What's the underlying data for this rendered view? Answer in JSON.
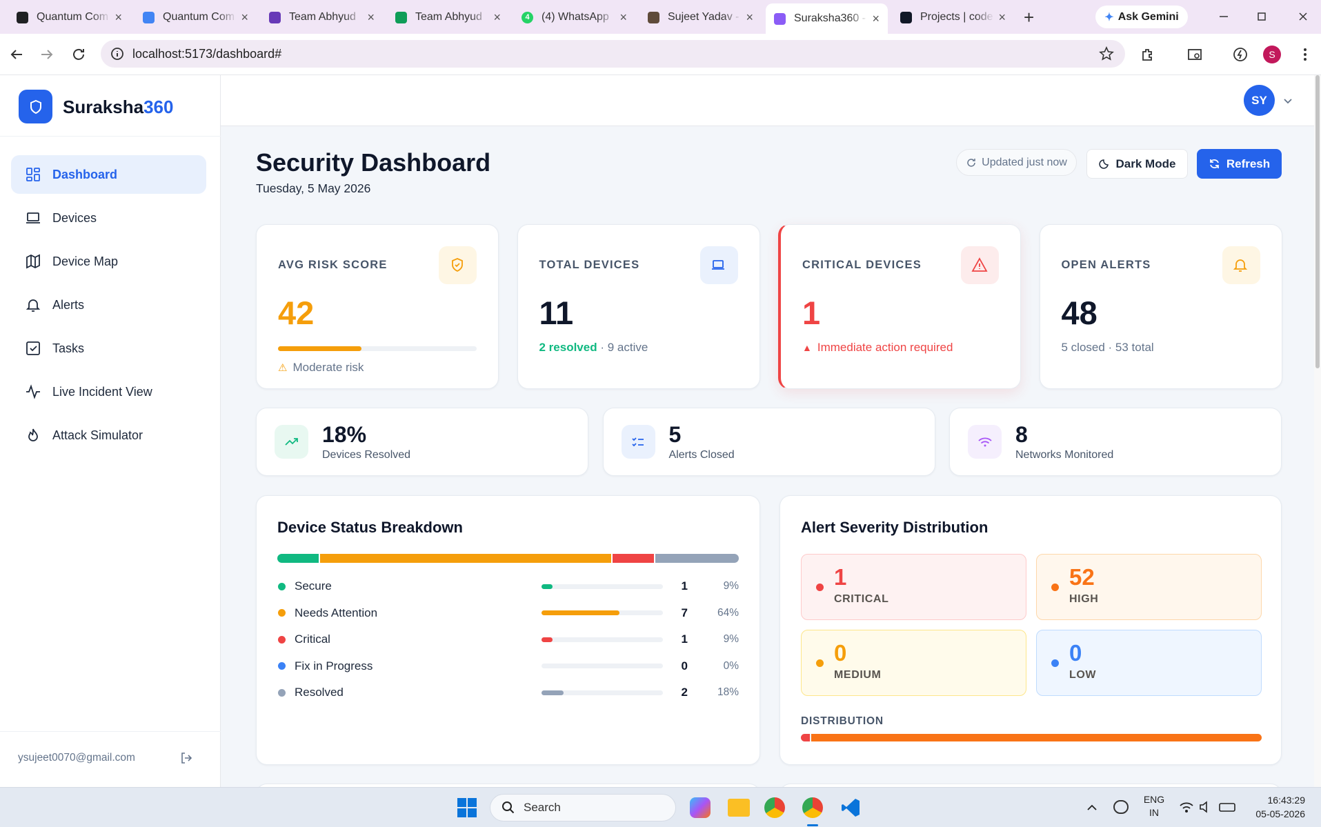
{
  "browser": {
    "tabs": [
      {
        "title": "Quantum Com",
        "icon": "#202124"
      },
      {
        "title": "Quantum Com",
        "icon": "#4285f4"
      },
      {
        "title": "Team Abhyud",
        "icon": "#673ab7"
      },
      {
        "title": "Team Abhyud",
        "icon": "#0f9d58"
      },
      {
        "title": "(4) WhatsApp",
        "icon": "#25d366",
        "badge": "4"
      },
      {
        "title": "Sujeet Yadav -",
        "icon": "#5f4b3a"
      },
      {
        "title": "Suraksha360 -",
        "icon": "#8b5cf6",
        "active": true
      },
      {
        "title": "Projects | code",
        "icon": "#111827"
      }
    ],
    "ask_gemini": "Ask Gemini",
    "url": "localhost:5173/dashboard#",
    "profile": "S"
  },
  "sidebar": {
    "brand": "Suraksha",
    "brand_suffix": "360",
    "nav": [
      "Dashboard",
      "Devices",
      "Device Map",
      "Alerts",
      "Tasks",
      "Live Incident View",
      "Attack Simulator"
    ],
    "email": "ysujeet0070@gmail.com"
  },
  "header": {
    "avatar": "SY",
    "title": "Security Dashboard",
    "date": "Tuesday, 5 May 2026",
    "updated": "Updated just now",
    "dark_mode": "Dark Mode",
    "refresh": "Refresh"
  },
  "stats": [
    {
      "label": "AVG RISK SCORE",
      "value": 42,
      "note": "Moderate risk"
    },
    {
      "label": "TOTAL DEVICES",
      "value": 11,
      "note_strong": "2 resolved",
      "note": "· 9 active"
    },
    {
      "label": "CRITICAL DEVICES",
      "value": 1,
      "note": "Immediate action required"
    },
    {
      "label": "OPEN ALERTS",
      "value": 48,
      "note": "5 closed · 53 total"
    }
  ],
  "summary": [
    {
      "value": "18%",
      "label": "Devices Resolved"
    },
    {
      "value": "5",
      "label": "Alerts Closed"
    },
    {
      "value": "8",
      "label": "Networks Monitored"
    }
  ],
  "device_status": {
    "title": "Device Status Breakdown",
    "items": [
      {
        "name": "Secure",
        "color": "#10b981",
        "count": 1,
        "percent": {
          "value": 9,
          "label": "9%"
        }
      },
      {
        "name": "Needs Attention",
        "color": "#f59e0b",
        "count": 7,
        "percent": {
          "value": 64,
          "label": "64%"
        }
      },
      {
        "name": "Critical",
        "color": "#ef4444",
        "count": 1,
        "percent": {
          "value": 9,
          "label": "9%"
        }
      },
      {
        "name": "Fix in Progress",
        "color": "#3b82f6",
        "count": 0,
        "percent": {
          "value": 0,
          "label": "0%"
        }
      },
      {
        "name": "Resolved",
        "color": "#94a3b8",
        "count": 2,
        "percent": {
          "value": 18,
          "label": "18%"
        }
      }
    ]
  },
  "alert_severity": {
    "title": "Alert Severity Distribution",
    "levels": [
      {
        "label": "CRITICAL",
        "count": 1,
        "color": "#ef4444",
        "bg": "#fef2f2",
        "border": "#fecaca"
      },
      {
        "label": "HIGH",
        "count": 52,
        "color": "#f97316",
        "bg": "#fff7ed",
        "border": "#fed7aa"
      },
      {
        "label": "MEDIUM",
        "count": 0,
        "color": "#f59e0b",
        "bg": "#fffbeb",
        "border": "#fde68a"
      },
      {
        "label": "LOW",
        "count": 0,
        "color": "#3b82f6",
        "bg": "#eff6ff",
        "border": "#bfdbfe"
      }
    ],
    "distribution_label": "DISTRIBUTION"
  },
  "taskbar": {
    "search": "Search",
    "lang": "ENG",
    "region": "IN",
    "time": "16:43:29",
    "date": "05-05-2026"
  }
}
